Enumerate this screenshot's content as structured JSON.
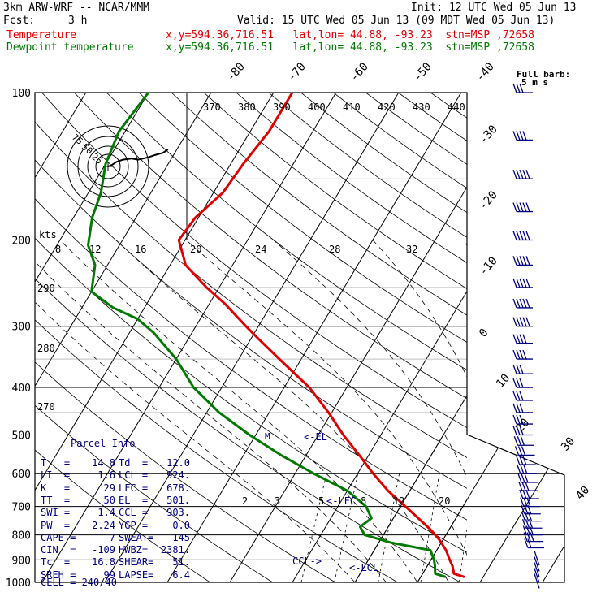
{
  "header": {
    "model": "3km ARW-WRF -- NCAR/MMM",
    "init": "Init: 12 UTC Wed 05 Jun 13",
    "fcst_label": "Fcst:",
    "fcst_value": "3 h",
    "valid": "Valid: 15 UTC Wed 05 Jun 13 (09 MDT Wed 05 Jun 13)",
    "temp_label": "Temperature",
    "temp_loc": "x,y=594.36,716.51   lat,lon= 44.88, -93.23  stn=MSP ,72658",
    "dew_label": "Dewpoint temperature",
    "dew_loc": "x,y=594.36,716.51   lat,lon= 44.88, -93.23  stn=MSP ,72658"
  },
  "colors": {
    "temperature": "#e00000",
    "dewpoint": "#007a00",
    "parcel_text": "#000080",
    "wind_barbs": "#000080",
    "axes": "#000000"
  },
  "barb_label": {
    "title": "Full barb:",
    "value": "5 m s"
  },
  "chart_data": {
    "type": "line",
    "subtype": "skew-T log-p sounding",
    "y_axis": {
      "quantity": "pressure (hPa)",
      "scale": "log",
      "range": [
        1000,
        100
      ],
      "ticks": [
        100,
        200,
        300,
        400,
        500,
        600,
        700,
        800,
        900,
        1000
      ]
    },
    "isotherm_labels": [
      "-80",
      "-70",
      "-60",
      "-50",
      "-40",
      "-30",
      "-20",
      "-10",
      "0",
      "10",
      "20",
      "30",
      "40"
    ],
    "isotherm_values": [
      -80,
      -70,
      -60,
      -50,
      -40,
      -30,
      -20,
      -10,
      0,
      10,
      20,
      30,
      40
    ],
    "theta_labels_top": [
      "370",
      "380",
      "390",
      "400",
      "410",
      "420",
      "430",
      "440"
    ],
    "theta_labels_left": [
      "290",
      "280",
      "270"
    ],
    "mixing_ratio_labels": [
      "2",
      "3",
      "5",
      "8",
      "12",
      "20"
    ],
    "hodograph": {
      "speed_unit": "kts",
      "ring_labels": [
        "75",
        "50",
        "25"
      ],
      "scale_ticks": [
        "8",
        "12",
        "16",
        "20",
        "24",
        "28",
        "32"
      ],
      "trace": [
        [
          0,
          0
        ],
        [
          2,
          1
        ],
        [
          5,
          4
        ],
        [
          9,
          6
        ],
        [
          14,
          7
        ],
        [
          18,
          6
        ],
        [
          24,
          8
        ],
        [
          28,
          10
        ],
        [
          33,
          12
        ],
        [
          36,
          15
        ]
      ]
    },
    "series": [
      {
        "name": "Temperature",
        "color": "#e00000",
        "points": [
          {
            "p": 975,
            "t": 17.0
          },
          {
            "p": 960,
            "t": 15.0
          },
          {
            "p": 925,
            "t": 14.0
          },
          {
            "p": 900,
            "t": 13.0
          },
          {
            "p": 860,
            "t": 11.5
          },
          {
            "p": 820,
            "t": 9.5
          },
          {
            "p": 780,
            "t": 7.0
          },
          {
            "p": 740,
            "t": 4.0
          },
          {
            "p": 700,
            "t": 0.8
          },
          {
            "p": 650,
            "t": -3.5
          },
          {
            "p": 600,
            "t": -7.5
          },
          {
            "p": 550,
            "t": -11.5
          },
          {
            "p": 500,
            "t": -16.0
          },
          {
            "p": 450,
            "t": -20.5
          },
          {
            "p": 400,
            "t": -26.0
          },
          {
            "p": 350,
            "t": -33.5
          },
          {
            "p": 320,
            "t": -38.5
          },
          {
            "p": 300,
            "t": -42.0
          },
          {
            "p": 270,
            "t": -47.5
          },
          {
            "p": 250,
            "t": -52.0
          },
          {
            "p": 225,
            "t": -57.5
          },
          {
            "p": 200,
            "t": -61.0
          },
          {
            "p": 180,
            "t": -60.5
          },
          {
            "p": 160,
            "t": -58.5
          },
          {
            "p": 140,
            "t": -58.0
          },
          {
            "p": 120,
            "t": -57.0
          },
          {
            "p": 100,
            "t": -57.0
          }
        ]
      },
      {
        "name": "Dewpoint temperature",
        "color": "#007a00",
        "points": [
          {
            "p": 975,
            "t": 14.0
          },
          {
            "p": 960,
            "t": 12.0
          },
          {
            "p": 925,
            "t": 11.2
          },
          {
            "p": 900,
            "t": 10.5
          },
          {
            "p": 860,
            "t": 9.0
          },
          {
            "p": 830,
            "t": 2.0
          },
          {
            "p": 800,
            "t": -3.0
          },
          {
            "p": 770,
            "t": -4.5
          },
          {
            "p": 740,
            "t": -3.5
          },
          {
            "p": 700,
            "t": -5.5
          },
          {
            "p": 650,
            "t": -10.0
          },
          {
            "p": 600,
            "t": -17.0
          },
          {
            "p": 550,
            "t": -24.0
          },
          {
            "p": 500,
            "t": -31.0
          },
          {
            "p": 450,
            "t": -38.0
          },
          {
            "p": 400,
            "t": -44.5
          },
          {
            "p": 350,
            "t": -50.0
          },
          {
            "p": 310,
            "t": -56.0
          },
          {
            "p": 290,
            "t": -60.0
          },
          {
            "p": 275,
            "t": -65.0
          },
          {
            "p": 255,
            "t": -70.0
          },
          {
            "p": 225,
            "t": -72.0
          },
          {
            "p": 205,
            "t": -75.0
          },
          {
            "p": 180,
            "t": -77.0
          },
          {
            "p": 160,
            "t": -78.0
          },
          {
            "p": 140,
            "t": -80.0
          },
          {
            "p": 120,
            "t": -81.0
          },
          {
            "p": 100,
            "t": -80.0
          }
        ]
      }
    ],
    "parcel_markers": [
      {
        "label": "<-LCL",
        "p": 924
      },
      {
        "label": "<-LFC",
        "p": 678
      },
      {
        "label": "<-EL",
        "p": 501
      },
      {
        "label": "CCL->",
        "p": 903
      }
    ],
    "wind_barbs_mps": [
      {
        "p": 100,
        "speed": 15
      },
      {
        "p": 125,
        "speed": 20
      },
      {
        "p": 150,
        "speed": 25
      },
      {
        "p": 175,
        "speed": 25
      },
      {
        "p": 200,
        "speed": 25
      },
      {
        "p": 225,
        "speed": 25
      },
      {
        "p": 250,
        "speed": 25
      },
      {
        "p": 275,
        "speed": 25
      },
      {
        "p": 300,
        "speed": 25
      },
      {
        "p": 325,
        "speed": 20
      },
      {
        "p": 350,
        "speed": 20
      },
      {
        "p": 375,
        "speed": 15
      },
      {
        "p": 400,
        "speed": 15
      },
      {
        "p": 425,
        "speed": 15
      },
      {
        "p": 450,
        "speed": 15
      },
      {
        "p": 475,
        "speed": 15
      },
      {
        "p": 500,
        "speed": 15
      },
      {
        "p": 525,
        "speed": 15
      },
      {
        "p": 550,
        "speed": 15
      },
      {
        "p": 575,
        "speed": 15
      },
      {
        "p": 600,
        "speed": 15
      },
      {
        "p": 625,
        "speed": 15
      },
      {
        "p": 650,
        "speed": 15
      },
      {
        "p": 675,
        "speed": 15
      },
      {
        "p": 700,
        "speed": 15
      },
      {
        "p": 725,
        "speed": 15
      },
      {
        "p": 750,
        "speed": 15
      },
      {
        "p": 775,
        "speed": 15
      },
      {
        "p": 800,
        "speed": 15
      },
      {
        "p": 825,
        "speed": 15
      },
      {
        "p": 850,
        "speed": 10
      },
      {
        "p": 875,
        "speed": 10
      },
      {
        "p": 900,
        "speed": 5
      },
      {
        "p": 925,
        "speed": 5
      },
      {
        "p": 950,
        "speed": 5
      },
      {
        "p": 975,
        "speed": 5
      }
    ]
  },
  "parcel_info": {
    "title": "Parcel Info",
    "rows": [
      [
        "T   =",
        "14.8",
        "Td  =",
        "12.0"
      ],
      [
        "LI  =",
        "1.6",
        "LCL =",
        "924."
      ],
      [
        "K   =",
        "29",
        "LFC =",
        "678."
      ],
      [
        "TT  =",
        "50",
        "EL  =",
        "501."
      ],
      [
        "SWI =",
        "1.4",
        "CCL =",
        "903."
      ],
      [
        "PW  =",
        "2.24",
        "YGP =",
        "0.0"
      ],
      [
        "CAPE =",
        "7",
        "SWEAT=",
        "145"
      ],
      [
        "CIN  =",
        "-109",
        "HWBZ=",
        "2381."
      ],
      [
        "Tc  =",
        "16.8",
        "SHEAR=",
        "51."
      ],
      [
        "SREH =",
        "99",
        "LAPSE=",
        "6.4"
      ]
    ],
    "cell_label": "CELL = 240/40"
  }
}
